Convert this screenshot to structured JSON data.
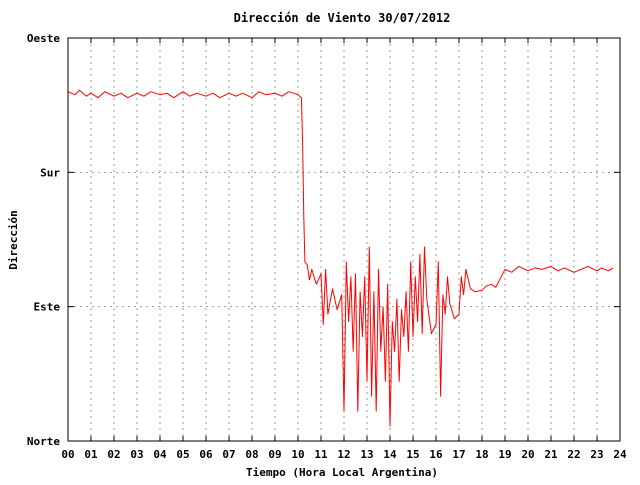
{
  "chart_data": {
    "type": "line",
    "title": "Dirección de Viento 30/07/2012",
    "xlabel": "Tiempo (Hora Local Argentina)",
    "ylabel": "Dirección",
    "xlim": [
      0,
      24
    ],
    "ylim": [
      0,
      270
    ],
    "grid": true,
    "x_ticks": [
      "00",
      "01",
      "02",
      "03",
      "04",
      "05",
      "06",
      "07",
      "08",
      "09",
      "10",
      "11",
      "12",
      "13",
      "14",
      "15",
      "16",
      "17",
      "18",
      "19",
      "20",
      "21",
      "22",
      "23",
      "24"
    ],
    "y_ticks": [
      {
        "label": "Norte",
        "value": 0
      },
      {
        "label": "Este",
        "value": 90
      },
      {
        "label": "Sur",
        "value": 180
      },
      {
        "label": "Oeste",
        "value": 270
      }
    ],
    "series": [
      {
        "color": "#ff0000",
        "x": [
          0.0,
          0.3,
          0.5,
          0.8,
          1.0,
          1.3,
          1.6,
          2.0,
          2.3,
          2.6,
          3.0,
          3.3,
          3.6,
          4.0,
          4.3,
          4.6,
          5.0,
          5.3,
          5.6,
          6.0,
          6.3,
          6.6,
          7.0,
          7.3,
          7.6,
          8.0,
          8.3,
          8.6,
          9.0,
          9.3,
          9.6,
          10.0,
          10.15,
          10.2,
          10.25,
          10.3,
          10.4,
          10.5,
          10.6,
          10.8,
          11.0,
          11.1,
          11.2,
          11.3,
          11.5,
          11.7,
          11.9,
          12.0,
          12.1,
          12.2,
          12.3,
          12.4,
          12.5,
          12.6,
          12.7,
          12.8,
          12.9,
          13.0,
          13.1,
          13.2,
          13.3,
          13.4,
          13.5,
          13.6,
          13.7,
          13.8,
          13.9,
          14.0,
          14.1,
          14.2,
          14.3,
          14.4,
          14.5,
          14.6,
          14.7,
          14.8,
          14.9,
          15.0,
          15.1,
          15.2,
          15.3,
          15.4,
          15.5,
          15.6,
          15.8,
          16.0,
          16.1,
          16.2,
          16.3,
          16.4,
          16.5,
          16.6,
          16.8,
          17.0,
          17.1,
          17.2,
          17.3,
          17.5,
          17.7,
          18.0,
          18.2,
          18.4,
          18.6,
          18.9,
          19.0,
          19.3,
          19.6,
          20.0,
          20.3,
          20.6,
          21.0,
          21.3,
          21.6,
          22.0,
          22.3,
          22.6,
          23.0,
          23.2,
          23.5,
          23.7
        ],
        "y": [
          234,
          232,
          235,
          231,
          233,
          230,
          234,
          231,
          233,
          230,
          233,
          231,
          234,
          232,
          233,
          230,
          234,
          231,
          233,
          231,
          233,
          230,
          233,
          231,
          233,
          230,
          234,
          232,
          233,
          231,
          234,
          232,
          230,
          200,
          150,
          120,
          118,
          108,
          115,
          105,
          112,
          78,
          115,
          85,
          102,
          88,
          98,
          20,
          120,
          80,
          110,
          60,
          112,
          20,
          100,
          70,
          110,
          40,
          130,
          30,
          100,
          20,
          115,
          60,
          90,
          40,
          105,
          10,
          80,
          60,
          95,
          40,
          88,
          70,
          100,
          60,
          120,
          70,
          110,
          80,
          125,
          72,
          130,
          95,
          72,
          78,
          120,
          30,
          98,
          85,
          110,
          92,
          82,
          85,
          110,
          98,
          115,
          102,
          100,
          101,
          104,
          105,
          103,
          112,
          115,
          113,
          117,
          114,
          116,
          115,
          117,
          114,
          116,
          113,
          115,
          117,
          114,
          116,
          114,
          116
        ]
      }
    ]
  }
}
